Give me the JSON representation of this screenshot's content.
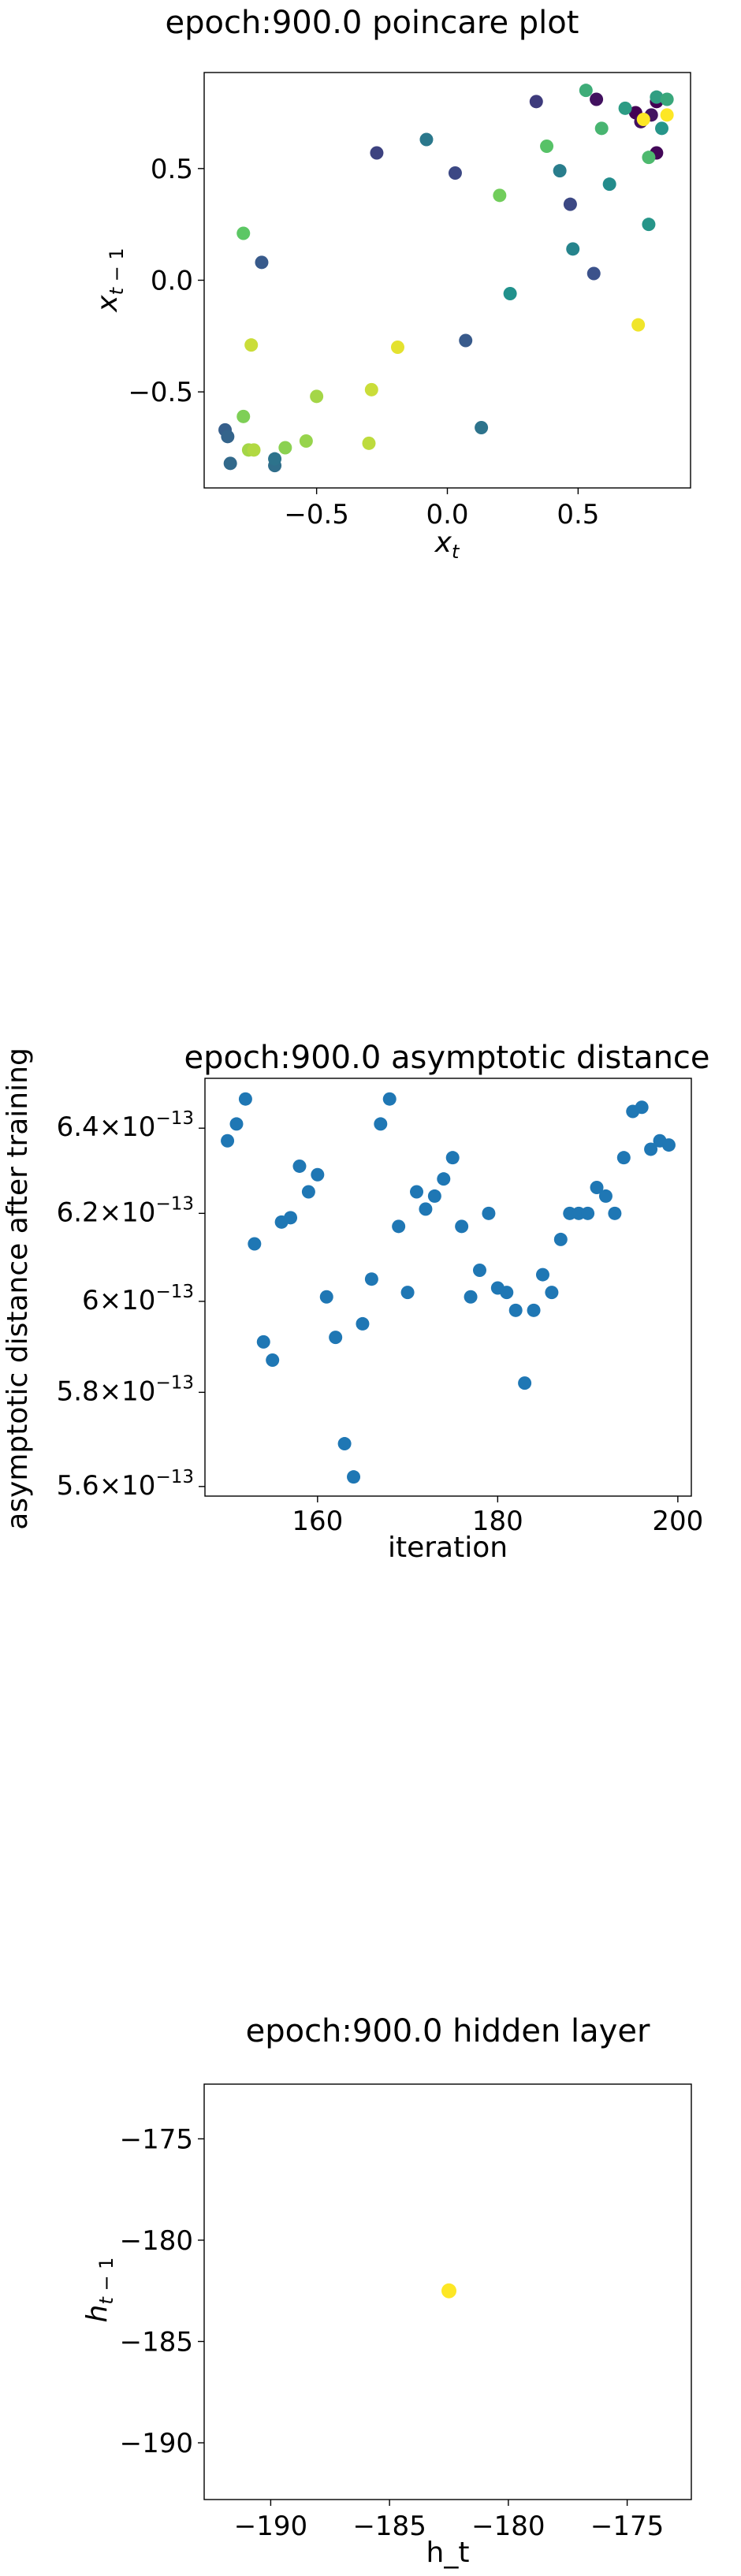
{
  "chart_data": [
    {
      "type": "scatter",
      "title": "epoch:900.0 poincare plot",
      "xlabel": "x_t",
      "ylabel": "x_{t-1}",
      "xlim": [
        -0.93,
        0.93
      ],
      "ylim": [
        -0.93,
        0.93
      ],
      "xticks": [
        -0.5,
        0.0,
        0.5
      ],
      "yticks": [
        -0.5,
        0.0,
        0.5
      ],
      "tick_labels_x": [
        "−0.5",
        "0.0",
        "0.5"
      ],
      "tick_labels_y": [
        "−0.5",
        "0.0",
        "0.5"
      ],
      "colormap": "viridis",
      "marker_color": "#440154",
      "points": [
        {
          "x": 0.8,
          "y": 0.8,
          "c": 0.0
        },
        {
          "x": 0.72,
          "y": 0.75,
          "c": 0.0
        },
        {
          "x": 0.8,
          "y": 0.57,
          "c": 0.02
        },
        {
          "x": 0.57,
          "y": 0.81,
          "c": 0.05
        },
        {
          "x": 0.78,
          "y": 0.74,
          "c": 0.06
        },
        {
          "x": 0.74,
          "y": 0.71,
          "c": 0.05
        },
        {
          "x": 0.34,
          "y": 0.8,
          "c": 0.18
        },
        {
          "x": -0.27,
          "y": 0.57,
          "c": 0.2
        },
        {
          "x": 0.03,
          "y": 0.48,
          "c": 0.22
        },
        {
          "x": 0.47,
          "y": 0.34,
          "c": 0.22
        },
        {
          "x": 0.56,
          "y": 0.03,
          "c": 0.25
        },
        {
          "x": -0.71,
          "y": 0.08,
          "c": 0.28
        },
        {
          "x": 0.07,
          "y": -0.27,
          "c": 0.28
        },
        {
          "x": -0.85,
          "y": -0.67,
          "c": 0.3
        },
        {
          "x": -0.84,
          "y": -0.7,
          "c": 0.32
        },
        {
          "x": -0.83,
          "y": -0.82,
          "c": 0.34
        },
        {
          "x": -0.66,
          "y": -0.83,
          "c": 0.36
        },
        {
          "x": -0.66,
          "y": -0.8,
          "c": 0.38
        },
        {
          "x": 0.13,
          "y": -0.66,
          "c": 0.38
        },
        {
          "x": -0.08,
          "y": 0.63,
          "c": 0.4
        },
        {
          "x": 0.43,
          "y": 0.49,
          "c": 0.42
        },
        {
          "x": 0.48,
          "y": 0.14,
          "c": 0.45
        },
        {
          "x": 0.62,
          "y": 0.43,
          "c": 0.48
        },
        {
          "x": 0.24,
          "y": -0.06,
          "c": 0.5
        },
        {
          "x": 0.77,
          "y": 0.25,
          "c": 0.52
        },
        {
          "x": 0.82,
          "y": 0.68,
          "c": 0.52
        },
        {
          "x": 0.68,
          "y": 0.77,
          "c": 0.55
        },
        {
          "x": 0.8,
          "y": 0.82,
          "c": 0.56
        },
        {
          "x": 0.84,
          "y": 0.81,
          "c": 0.6
        },
        {
          "x": 0.53,
          "y": 0.85,
          "c": 0.62
        },
        {
          "x": 0.59,
          "y": 0.68,
          "c": 0.66
        },
        {
          "x": 0.77,
          "y": 0.55,
          "c": 0.68
        },
        {
          "x": 0.38,
          "y": 0.6,
          "c": 0.72
        },
        {
          "x": 0.2,
          "y": 0.38,
          "c": 0.78
        },
        {
          "x": -0.78,
          "y": 0.21,
          "c": 0.74
        },
        {
          "x": -0.78,
          "y": -0.61,
          "c": 0.8
        },
        {
          "x": -0.62,
          "y": -0.75,
          "c": 0.82
        },
        {
          "x": -0.54,
          "y": -0.72,
          "c": 0.84
        },
        {
          "x": -0.5,
          "y": -0.52,
          "c": 0.86
        },
        {
          "x": -0.76,
          "y": -0.76,
          "c": 0.86
        },
        {
          "x": -0.74,
          "y": -0.76,
          "c": 0.88
        },
        {
          "x": -0.3,
          "y": -0.73,
          "c": 0.9
        },
        {
          "x": -0.29,
          "y": -0.49,
          "c": 0.92
        },
        {
          "x": -0.75,
          "y": -0.29,
          "c": 0.92
        },
        {
          "x": -0.19,
          "y": -0.3,
          "c": 0.96
        },
        {
          "x": 0.73,
          "y": -0.2,
          "c": 0.98
        },
        {
          "x": 0.84,
          "y": 0.74,
          "c": 1.0
        },
        {
          "x": 0.75,
          "y": 0.72,
          "c": 1.0
        }
      ]
    },
    {
      "type": "scatter",
      "title": "epoch:900.0 asymptotic distance",
      "xlabel": "iteration",
      "ylabel": "asymptotic distance after training",
      "yscale": "log",
      "xlim": [
        147.5,
        201.5
      ],
      "ylim": [
        5.58e-13,
        6.52e-13
      ],
      "xticks": [
        160,
        180,
        200
      ],
      "yticks": [
        5.6e-13,
        5.8e-13,
        6e-13,
        6.2e-13,
        6.4e-13
      ],
      "tick_mantissas_y": [
        "5.6",
        "5.8",
        "6",
        "6.2",
        "6.4"
      ],
      "tick_sep_y": "×10",
      "tick_exponent_y": "−13",
      "marker_color": "#1f77b4",
      "x": [
        150,
        151,
        152,
        153,
        154,
        155,
        156,
        157,
        158,
        159,
        160,
        161,
        162,
        163,
        164,
        165,
        166,
        167,
        168,
        169,
        170,
        171,
        172,
        173,
        174,
        175,
        176,
        177,
        178,
        179,
        180,
        181,
        182,
        183,
        184,
        185,
        186,
        187,
        188,
        189,
        190,
        191,
        192,
        193,
        194,
        195,
        196,
        197,
        198,
        199
      ],
      "y": [
        6.37e-13,
        6.41e-13,
        6.47e-13,
        6.13e-13,
        5.91e-13,
        5.87e-13,
        6.18e-13,
        6.19e-13,
        6.31e-13,
        6.25e-13,
        6.29e-13,
        6.01e-13,
        5.92e-13,
        5.69e-13,
        5.62e-13,
        5.95e-13,
        6.05e-13,
        6.41e-13,
        6.47e-13,
        6.17e-13,
        6.02e-13,
        6.25e-13,
        6.21e-13,
        6.24e-13,
        6.28e-13,
        6.33e-13,
        6.17e-13,
        6.01e-13,
        6.07e-13,
        6.2e-13,
        6.03e-13,
        6.02e-13,
        5.98e-13,
        5.82e-13,
        5.98e-13,
        6.06e-13,
        6.02e-13,
        6.14e-13,
        6.2e-13,
        6.2e-13,
        6.2e-13,
        6.26e-13,
        6.24e-13,
        6.2e-13,
        6.33e-13,
        6.44e-13,
        6.45e-13,
        6.35e-13,
        6.37e-13,
        6.36e-13
      ]
    },
    {
      "type": "scatter",
      "title": "epoch:900.0 hidden layer",
      "xlabel": "h_t",
      "ylabel": "h_{t-1}",
      "xlim": [
        -192.8,
        -172.3
      ],
      "ylim": [
        -192.8,
        -172.3
      ],
      "xticks": [
        -190,
        -185,
        -180,
        -175
      ],
      "yticks": [
        -190,
        -185,
        -180,
        -175
      ],
      "tick_labels_x": [
        "−190",
        "−185",
        "−180",
        "−175"
      ],
      "tick_labels_y": [
        "−190",
        "−185",
        "−180",
        "−175"
      ],
      "marker_color": "#fde725",
      "points": [
        {
          "x": -182.5,
          "y": -182.5
        }
      ]
    }
  ]
}
